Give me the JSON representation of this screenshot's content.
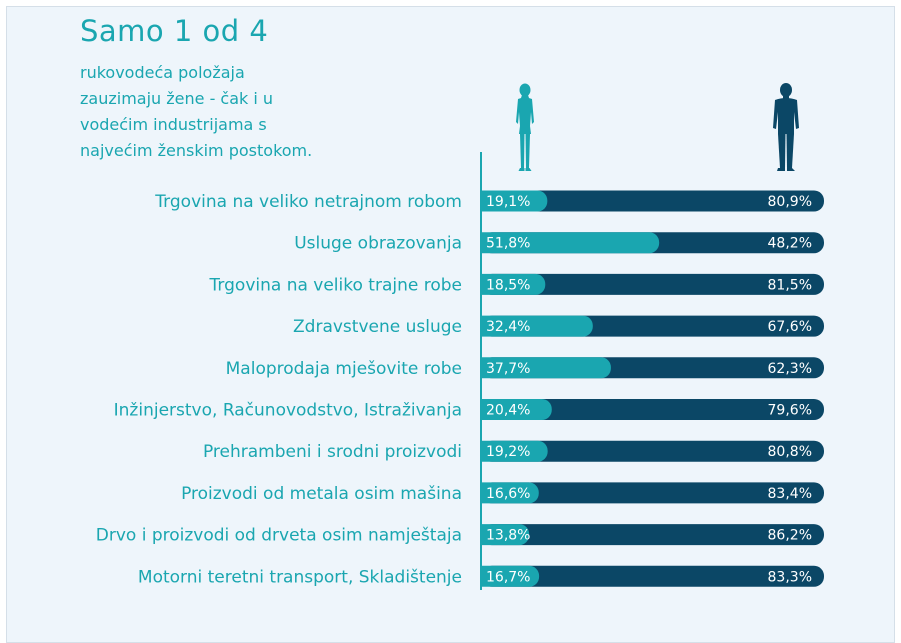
{
  "header": {
    "title": "Samo 1 od 4",
    "subtitle_lines": [
      "rukovodeća položaja",
      "zauzimaju žene - čak i u",
      "vodećim industrijama s",
      "najvećim ženskim postokom."
    ]
  },
  "icons": {
    "women": "woman-silhouette-icon",
    "men": "man-silhouette-icon"
  },
  "colors": {
    "women_bar": "#1aa6b0",
    "men_bar": "#0b4766",
    "label_text": "#1aa6b0",
    "value_text": "#ffffff",
    "axis_line": "#1aa6b0",
    "background": "#eef5fb"
  },
  "chart_data": {
    "type": "bar",
    "orientation": "horizontal",
    "stacked": true,
    "xlim": [
      0,
      100
    ],
    "unit": "%",
    "categories": [
      "Trgovina na veliko netrajnom robom",
      "Usluge obrazovanja",
      "Trgovina na veliko trajne robe",
      "Zdravstvene usluge",
      "Maloprodaja mješovite robe",
      "Inžinjerstvo, Računovodstvo, Istraživanja",
      "Prehrambeni i srodni proizvodi",
      "Proizvodi od metala osim mašina",
      "Drvo i proizvodi od drveta osim namještaja",
      "Motorni teretni transport, Skladištenje"
    ],
    "series": [
      {
        "values": [
          19.1,
          51.8,
          18.5,
          32.4,
          37.7,
          20.4,
          19.2,
          16.6,
          13.8,
          16.7
        ],
        "labels": [
          "19,1%",
          "51,8%",
          "18,5%",
          "32,4%",
          "37,7%",
          "20,4%",
          "19,2%",
          "16,6%",
          "13,8%",
          "16,7%"
        ]
      },
      {
        "values": [
          80.9,
          48.2,
          81.5,
          67.6,
          62.3,
          79.6,
          80.8,
          83.4,
          86.2,
          83.3
        ],
        "labels": [
          "80,9%",
          "48,2%",
          "81,5%",
          "67,6%",
          "62,3%",
          "79,6%",
          "80,8%",
          "83,4%",
          "86,2%",
          "83,3%"
        ]
      }
    ]
  }
}
